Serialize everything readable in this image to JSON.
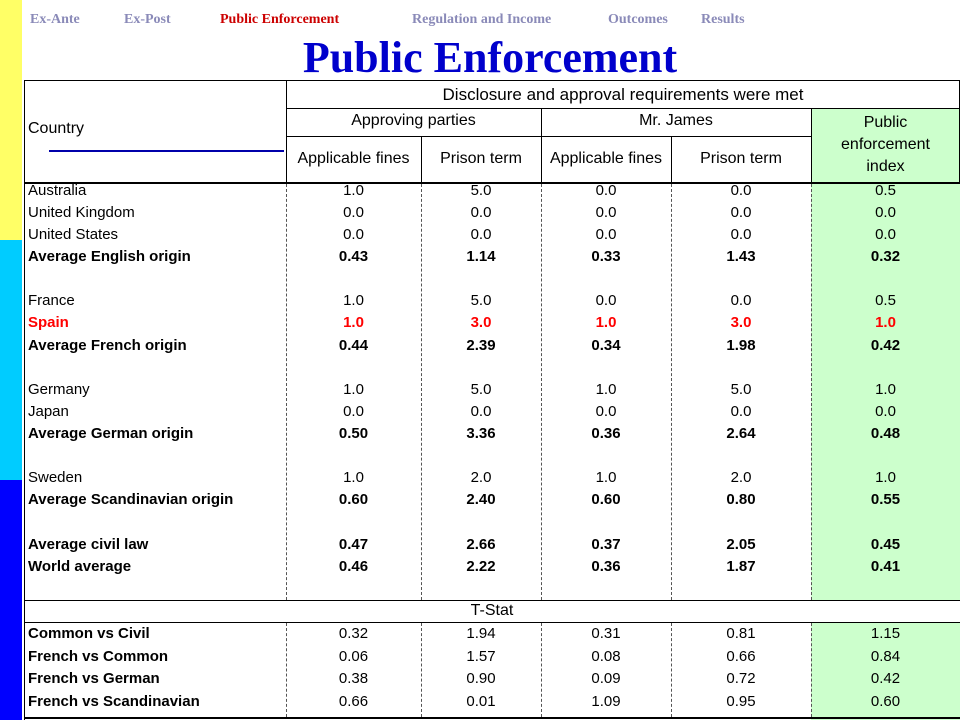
{
  "colors": {
    "sidebar_top": "#ffff66",
    "sidebar_mid": "#00ccff",
    "sidebar_bottom": "#0000ff",
    "accent_title": "#0000cc",
    "active_nav": "#cc0000",
    "highlight_row": "#ff0000",
    "index_fill": "#ccffcc"
  },
  "nav": {
    "items": [
      "Ex-Ante",
      "Ex-Post",
      "Public Enforcement",
      "Regulation and Income",
      "Outcomes",
      "Results"
    ],
    "active": "Public Enforcement"
  },
  "title": "Public Enforcement",
  "table": {
    "country_header": "Country",
    "group_header": "Disclosure and approval requirements were met",
    "sub_headers": [
      "Approving parties",
      "Mr. James"
    ],
    "index_header": [
      "Public",
      "enforcement",
      "index"
    ],
    "column_headers": [
      "Applicable fines",
      "Prison term",
      "Applicable fines",
      "Prison term"
    ],
    "rows": [
      [
        "Australia",
        "1.0",
        "5.0",
        "0.0",
        "0.0",
        "0.5"
      ],
      [
        "United Kingdom",
        "0.0",
        "0.0",
        "0.0",
        "0.0",
        "0.0"
      ],
      [
        "United States",
        "0.0",
        "0.0",
        "0.0",
        "0.0",
        "0.0"
      ],
      [
        "Average English origin",
        "0.43",
        "1.14",
        "0.33",
        "1.43",
        "0.32"
      ],
      [
        "France",
        "1.0",
        "5.0",
        "0.0",
        "0.0",
        "0.5"
      ],
      [
        "Spain",
        "1.0",
        "3.0",
        "1.0",
        "3.0",
        "1.0"
      ],
      [
        "Average French origin",
        "0.44",
        "2.39",
        "0.34",
        "1.98",
        "0.42"
      ],
      [
        "Germany",
        "1.0",
        "5.0",
        "1.0",
        "5.0",
        "1.0"
      ],
      [
        "Japan",
        "0.0",
        "0.0",
        "0.0",
        "0.0",
        "0.0"
      ],
      [
        "Average German origin",
        "0.50",
        "3.36",
        "0.36",
        "2.64",
        "0.48"
      ],
      [
        "Sweden",
        "1.0",
        "2.0",
        "1.0",
        "2.0",
        "1.0"
      ],
      [
        "Average Scandinavian origin",
        "0.60",
        "2.40",
        "0.60",
        "0.80",
        "0.55"
      ],
      [
        "Average civil law",
        "0.47",
        "2.66",
        "0.37",
        "2.05",
        "0.45"
      ],
      [
        "World average",
        "0.46",
        "2.22",
        "0.36",
        "1.87",
        "0.41"
      ]
    ],
    "tstat_header": "T-Stat",
    "tstat_rows": [
      [
        "Common vs Civil",
        "0.32",
        "1.94",
        "0.31",
        "0.81",
        "1.15"
      ],
      [
        "French vs Common",
        "0.06",
        "1.57",
        "0.08",
        "0.66",
        "0.84"
      ],
      [
        "French vs German",
        "0.38",
        "0.90",
        "0.09",
        "0.72",
        "0.42"
      ],
      [
        "French vs Scandinavian",
        "0.66",
        "0.01",
        "1.09",
        "0.95",
        "0.60"
      ]
    ]
  }
}
